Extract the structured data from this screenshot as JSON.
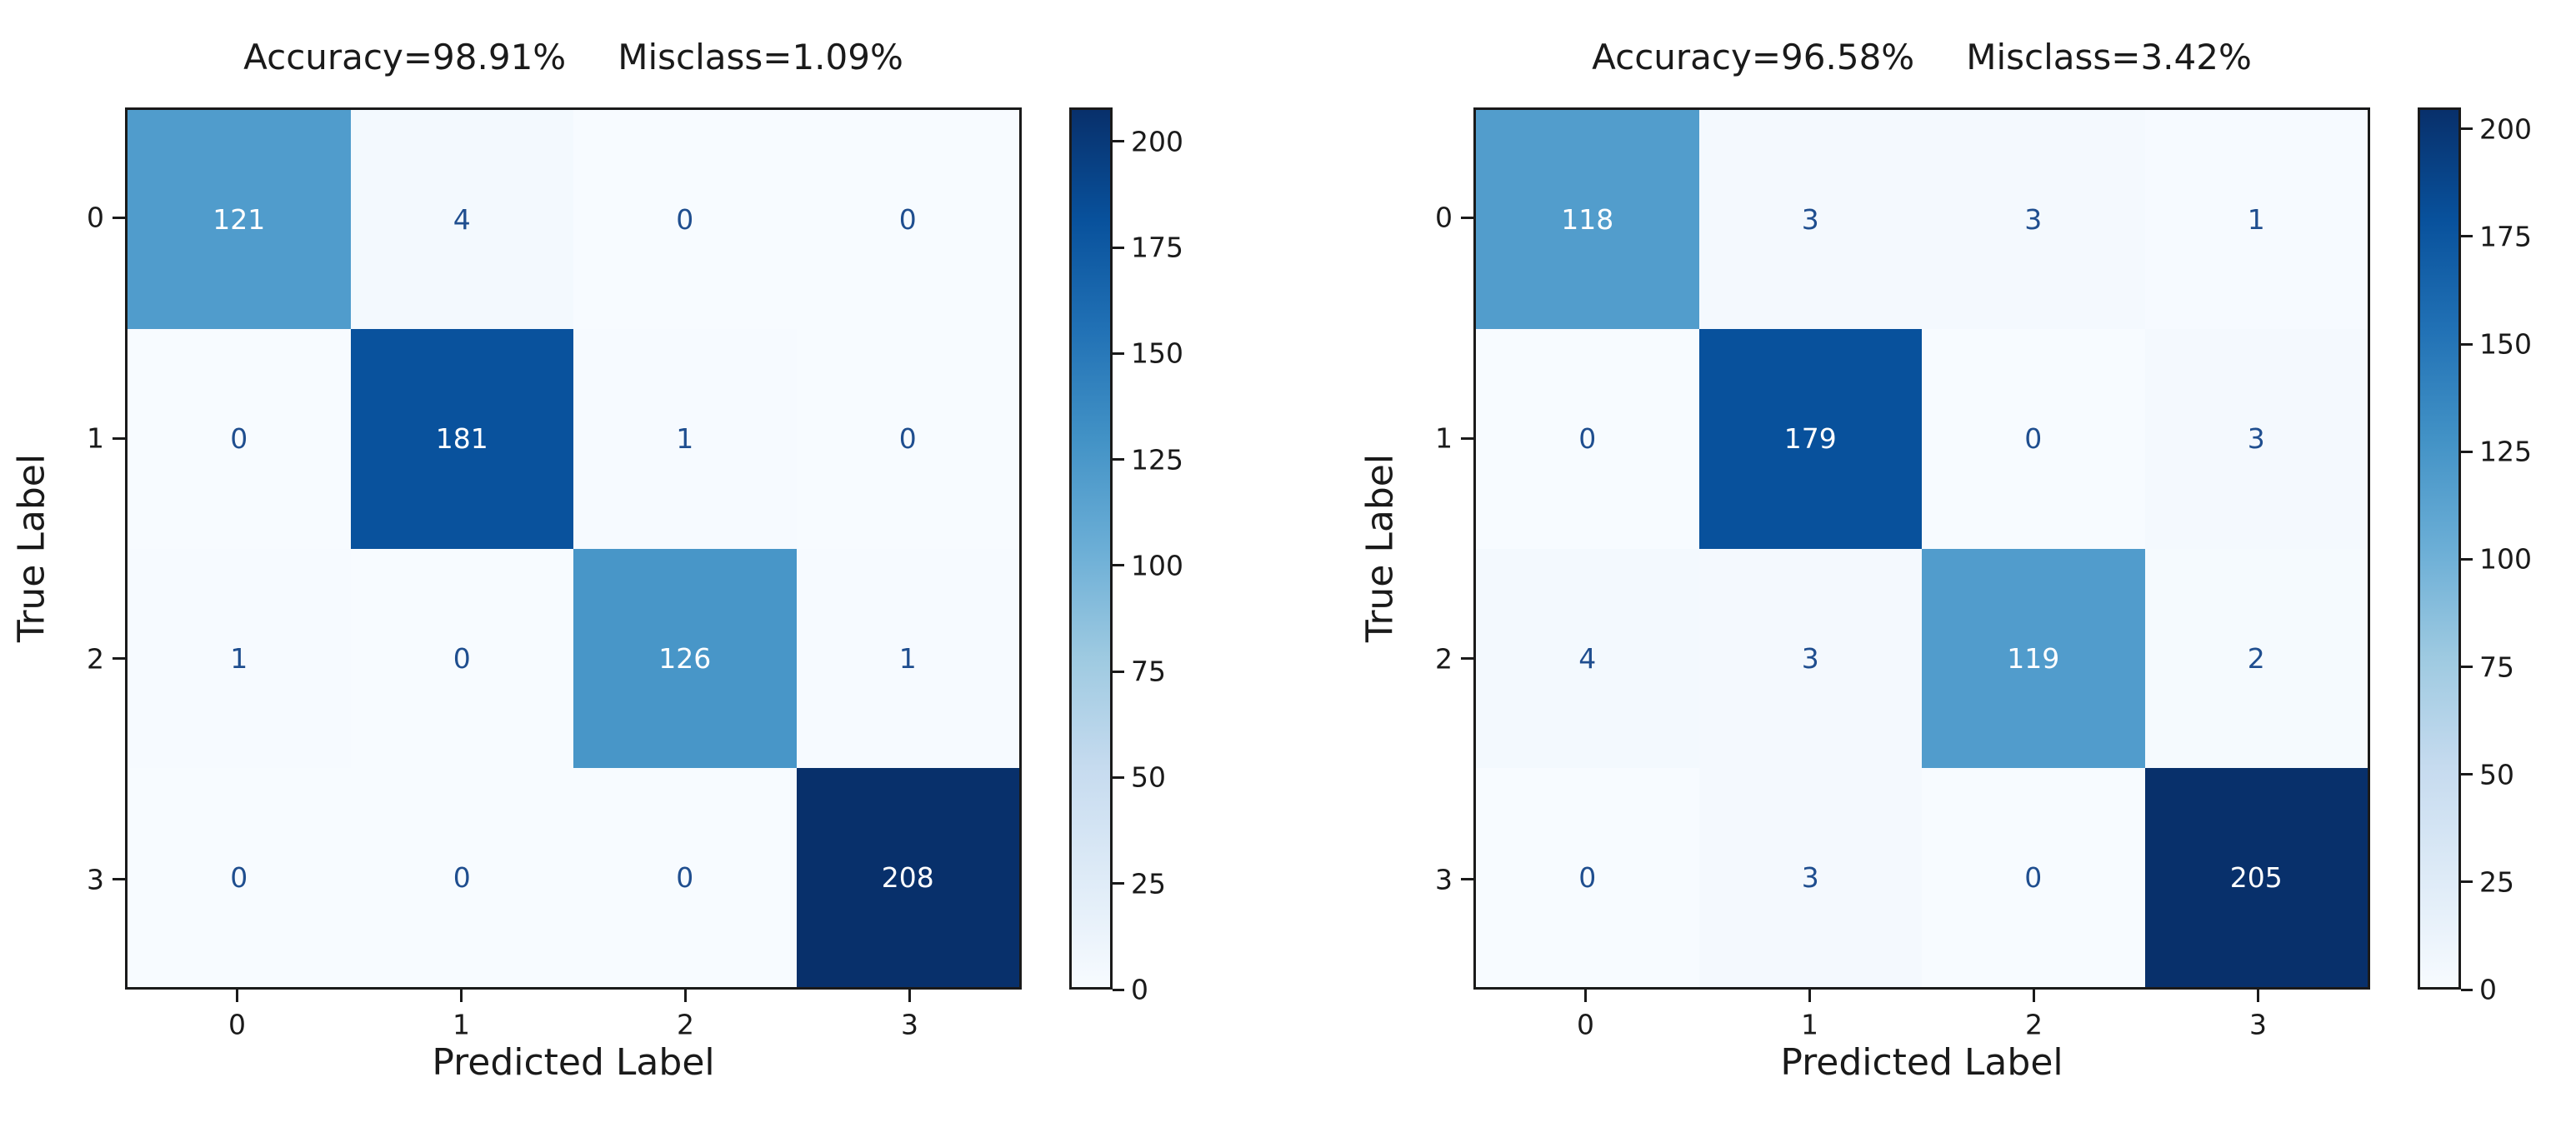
{
  "chart_data": [
    {
      "type": "heatmap",
      "name": "confusion-matrix-left",
      "title_accuracy": "Accuracy=98.91%",
      "title_misclass": "Misclass=1.09%",
      "accuracy_pct": 98.91,
      "misclass_pct": 1.09,
      "xlabel": "Predicted Label",
      "ylabel": "True Label",
      "x_ticks": [
        "0",
        "1",
        "2",
        "3"
      ],
      "y_ticks": [
        "0",
        "1",
        "2",
        "3"
      ],
      "matrix": [
        [
          121,
          4,
          0,
          0
        ],
        [
          0,
          181,
          1,
          0
        ],
        [
          1,
          0,
          126,
          1
        ],
        [
          0,
          0,
          0,
          208
        ]
      ],
      "colormap": "Blues",
      "vmin": 0,
      "vmax": 208,
      "colorbar_ticks": [
        0,
        25,
        50,
        75,
        100,
        125,
        150,
        175,
        200
      ],
      "legend_position": "right-colorbar",
      "grid": false
    },
    {
      "type": "heatmap",
      "name": "confusion-matrix-right",
      "title_accuracy": "Accuracy=96.58%",
      "title_misclass": "Misclass=3.42%",
      "accuracy_pct": 96.58,
      "misclass_pct": 3.42,
      "xlabel": "Predicted Label",
      "ylabel": "True Label",
      "x_ticks": [
        "0",
        "1",
        "2",
        "3"
      ],
      "y_ticks": [
        "0",
        "1",
        "2",
        "3"
      ],
      "matrix": [
        [
          118,
          3,
          3,
          1
        ],
        [
          0,
          179,
          0,
          3
        ],
        [
          4,
          3,
          119,
          2
        ],
        [
          0,
          3,
          0,
          205
        ]
      ],
      "colormap": "Blues",
      "vmin": 0,
      "vmax": 205,
      "colorbar_ticks": [
        0,
        25,
        50,
        75,
        100,
        125,
        150,
        175,
        200
      ],
      "legend_position": "right-colorbar",
      "grid": false
    }
  ],
  "colors": {
    "blues_stops": [
      "#f7fbff",
      "#deebf7",
      "#c6dbef",
      "#9ecae1",
      "#6baed6",
      "#4292c6",
      "#2171b5",
      "#08519c",
      "#08306b"
    ],
    "cell_text_dark": "#1f4e8f",
    "cell_text_light": "#ffffff",
    "spine": "#1a1a1a",
    "tick_text": "#1a1a1a",
    "background": "#ffffff"
  }
}
